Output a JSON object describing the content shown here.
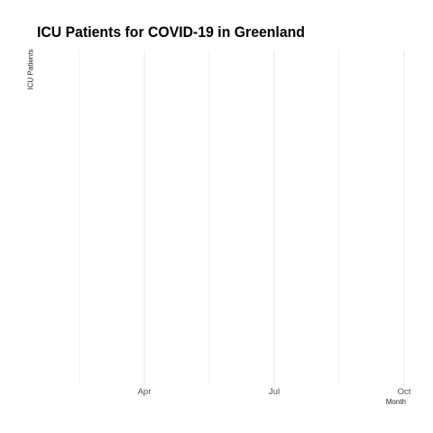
{
  "chart_data": {
    "type": "line",
    "title": "ICU Patients for COVID-19 in Greenland",
    "xlabel": "Month",
    "ylabel": "ICU Patients",
    "x_tick_labels": [
      "Apr",
      "Jul",
      "Oct"
    ],
    "series": [],
    "grid": true,
    "grid_color": "#ebebeb",
    "background_color": "#ffffff"
  }
}
